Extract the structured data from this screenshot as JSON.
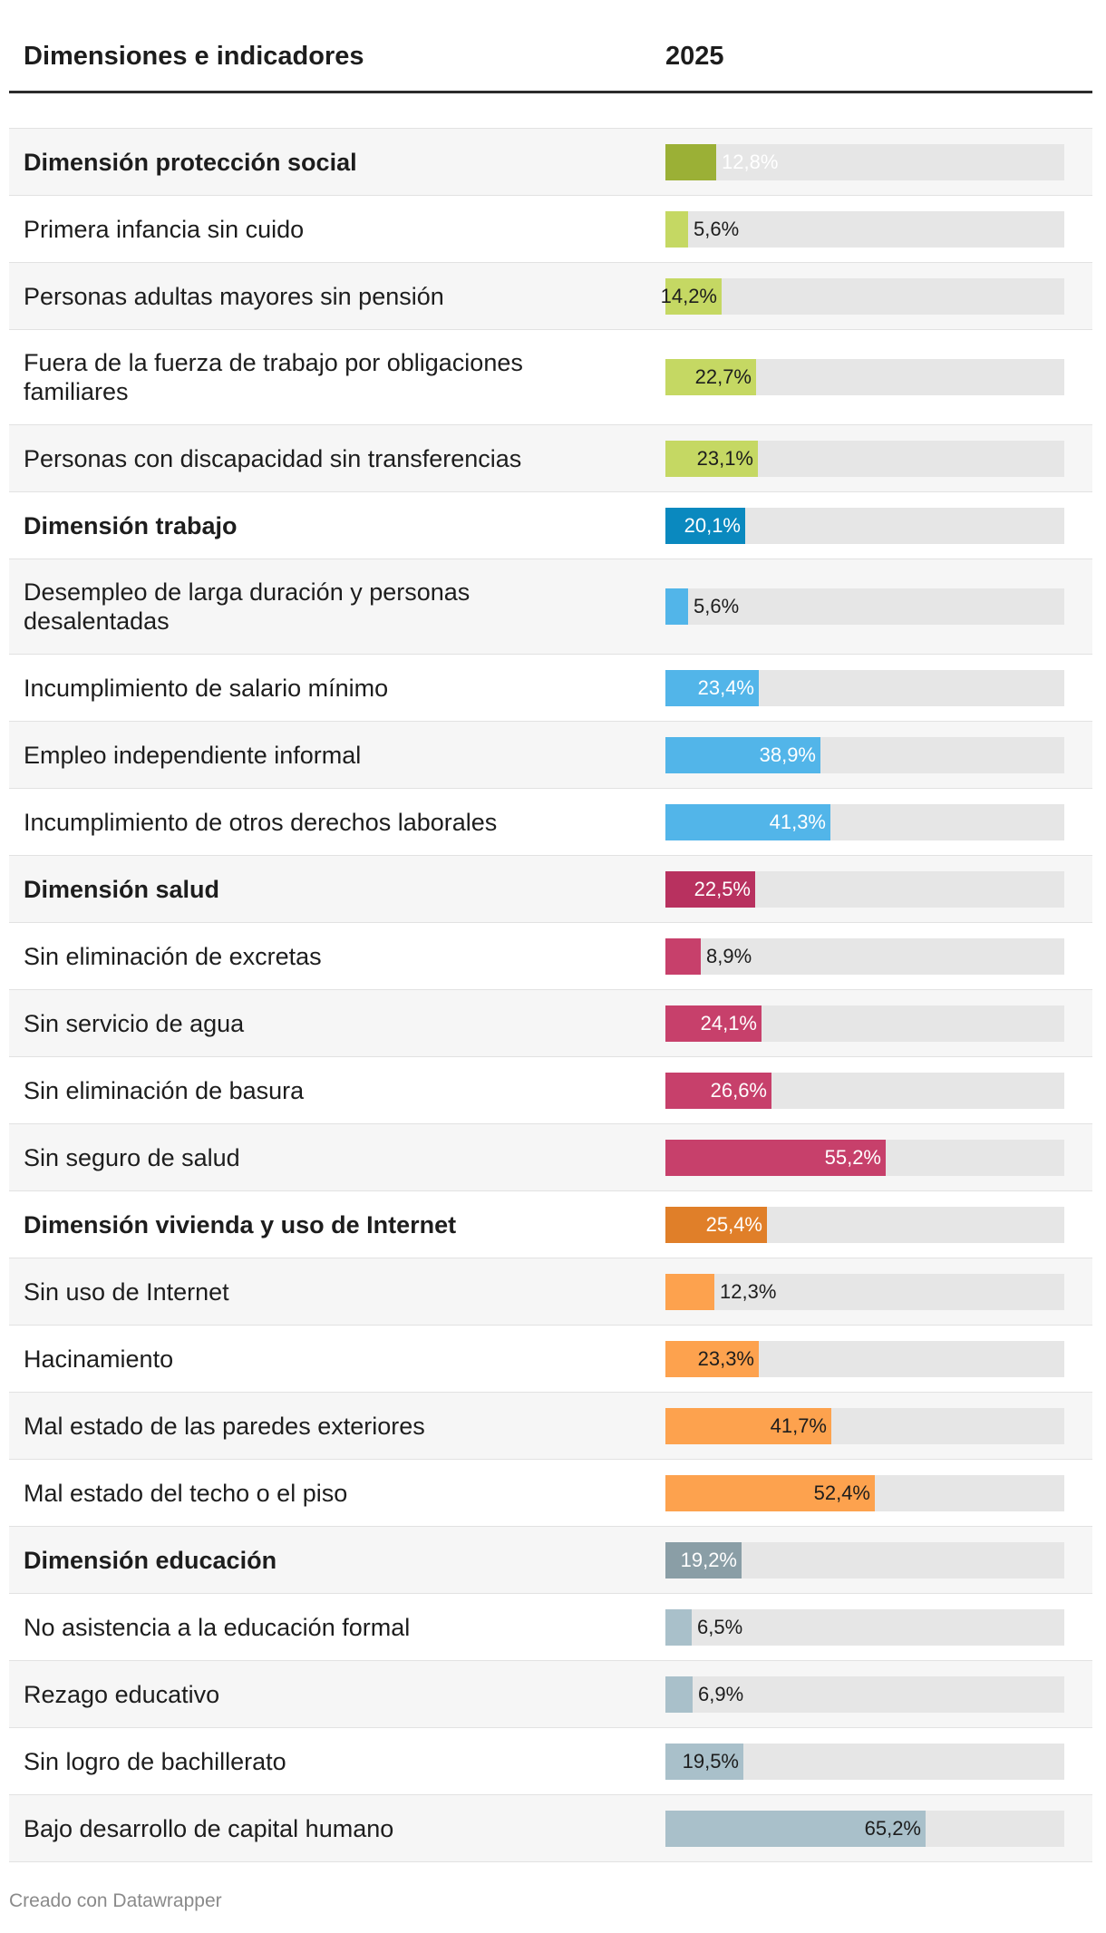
{
  "header": {
    "indicators_label": "Dimensiones e indicadores",
    "year_label": "2025"
  },
  "chart_data": {
    "type": "bar",
    "orientation": "horizontal",
    "xlim": [
      0,
      100
    ],
    "value_suffix": "%",
    "series_name": "2025",
    "rows": [
      {
        "label": "Dimensión protección social",
        "display": "12,8%",
        "value": 12.8,
        "bold": true,
        "color": "#9bb036",
        "label_color": "#ffffff"
      },
      {
        "label": "Primera infancia sin cuido",
        "display": "5,6%",
        "value": 5.6,
        "bold": false,
        "color": "#c5d863",
        "label_color": "#1d1d1d"
      },
      {
        "label": "Personas adultas mayores sin pensión",
        "display": "14,2%",
        "value": 14.2,
        "bold": false,
        "color": "#c5d863",
        "label_color": "#1d1d1d"
      },
      {
        "label": "Fuera de la fuerza de trabajo por obligaciones familiares",
        "display": "22,7%",
        "value": 22.7,
        "bold": false,
        "color": "#c5d863",
        "label_color": "#1d1d1d"
      },
      {
        "label": "Personas con discapacidad sin transferencias",
        "display": "23,1%",
        "value": 23.1,
        "bold": false,
        "color": "#c5d863",
        "label_color": "#1d1d1d"
      },
      {
        "label": "Dimensión trabajo",
        "display": "20,1%",
        "value": 20.1,
        "bold": true,
        "color": "#0a89bf",
        "label_color": "#ffffff"
      },
      {
        "label": "Desempleo de larga duración y personas desalentadas",
        "display": "5,6%",
        "value": 5.6,
        "bold": false,
        "color": "#52b5e9",
        "label_color": "#1d1d1d"
      },
      {
        "label": "Incumplimiento de salario mínimo",
        "display": "23,4%",
        "value": 23.4,
        "bold": false,
        "color": "#52b5e9",
        "label_color": "#ffffff"
      },
      {
        "label": "Empleo independiente informal",
        "display": "38,9%",
        "value": 38.9,
        "bold": false,
        "color": "#52b5e9",
        "label_color": "#ffffff"
      },
      {
        "label": "Incumplimiento de otros derechos laborales",
        "display": "41,3%",
        "value": 41.3,
        "bold": false,
        "color": "#52b5e9",
        "label_color": "#ffffff"
      },
      {
        "label": "Dimensión salud",
        "display": "22,5%",
        "value": 22.5,
        "bold": true,
        "color": "#b8315f",
        "label_color": "#ffffff"
      },
      {
        "label": "Sin eliminación de excretas",
        "display": "8,9%",
        "value": 8.9,
        "bold": false,
        "color": "#c7406b",
        "label_color": "#1d1d1d"
      },
      {
        "label": "Sin servicio de agua",
        "display": "24,1%",
        "value": 24.1,
        "bold": false,
        "color": "#c7406b",
        "label_color": "#ffffff"
      },
      {
        "label": "Sin eliminación de basura",
        "display": "26,6%",
        "value": 26.6,
        "bold": false,
        "color": "#c7406b",
        "label_color": "#ffffff"
      },
      {
        "label": "Sin seguro de salud",
        "display": "55,2%",
        "value": 55.2,
        "bold": false,
        "color": "#c7406b",
        "label_color": "#ffffff"
      },
      {
        "label": "Dimensión vivienda y uso de Internet",
        "display": "25,4%",
        "value": 25.4,
        "bold": true,
        "color": "#e07f29",
        "label_color": "#ffffff"
      },
      {
        "label": "Sin uso de Internet",
        "display": "12,3%",
        "value": 12.3,
        "bold": false,
        "color": "#fda24e",
        "label_color": "#1d1d1d"
      },
      {
        "label": "Hacinamiento",
        "display": "23,3%",
        "value": 23.3,
        "bold": false,
        "color": "#fda24e",
        "label_color": "#1d1d1d"
      },
      {
        "label": "Mal estado de las paredes exteriores",
        "display": "41,7%",
        "value": 41.7,
        "bold": false,
        "color": "#fda24e",
        "label_color": "#1d1d1d"
      },
      {
        "label": "Mal estado del techo o el piso",
        "display": "52,4%",
        "value": 52.4,
        "bold": false,
        "color": "#fda24e",
        "label_color": "#1d1d1d"
      },
      {
        "label": "Dimensión educación",
        "display": "19,2%",
        "value": 19.2,
        "bold": true,
        "color": "#8a9ea6",
        "label_color": "#ffffff"
      },
      {
        "label": "No asistencia a la educación formal",
        "display": "6,5%",
        "value": 6.5,
        "bold": false,
        "color": "#a9c0ca",
        "label_color": "#1d1d1d"
      },
      {
        "label": "Rezago educativo",
        "display": "6,9%",
        "value": 6.9,
        "bold": false,
        "color": "#a9c0ca",
        "label_color": "#1d1d1d"
      },
      {
        "label": "Sin logro de bachillerato",
        "display": "19,5%",
        "value": 19.5,
        "bold": false,
        "color": "#a9c0ca",
        "label_color": "#1d1d1d"
      },
      {
        "label": "Bajo desarrollo de capital humano",
        "display": "65,2%",
        "value": 65.2,
        "bold": false,
        "color": "#a9c0ca",
        "label_color": "#1d1d1d"
      }
    ]
  },
  "footer": {
    "credit": "Creado con Datawrapper"
  }
}
